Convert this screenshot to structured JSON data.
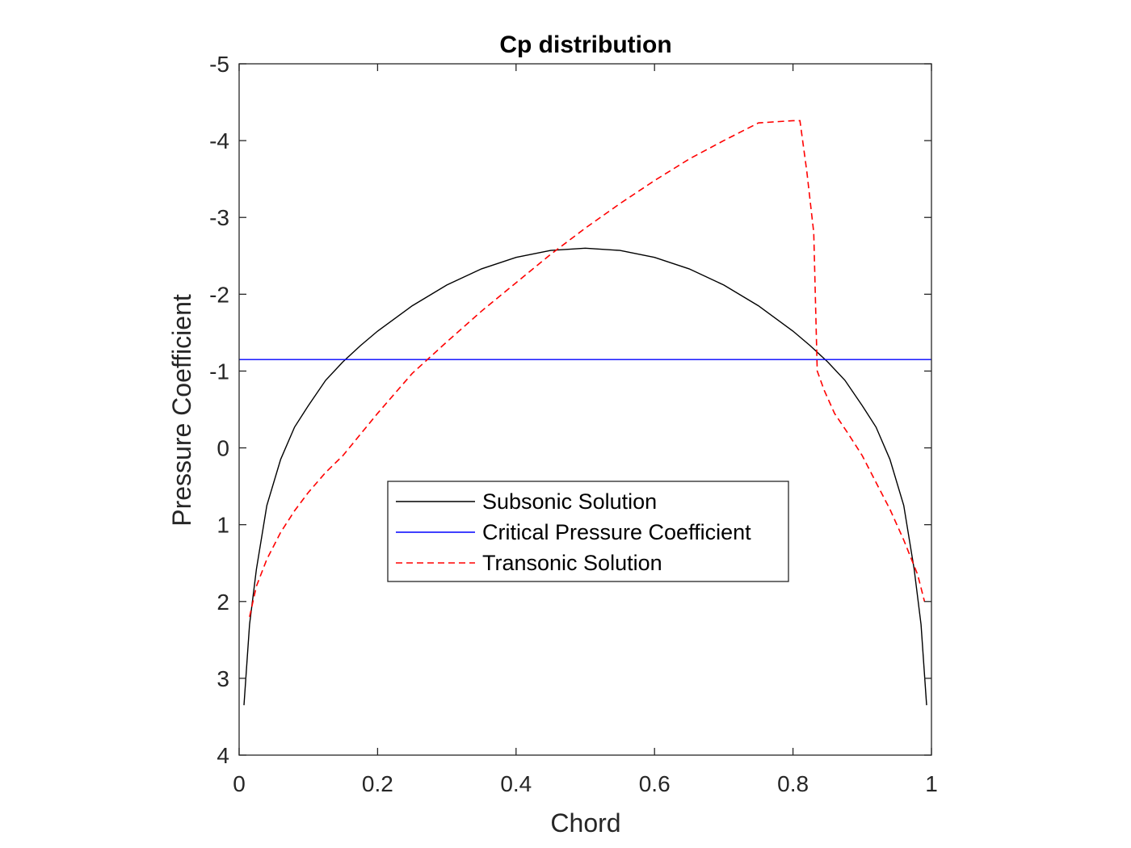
{
  "chart_data": {
    "type": "line",
    "title": "Cp distribution",
    "xlabel": "Chord",
    "ylabel": "Pressure Coefficient",
    "xlim": [
      0,
      1
    ],
    "ylim": [
      -5,
      4
    ],
    "y_reversed": true,
    "xticks": [
      0,
      0.2,
      0.4,
      0.6,
      0.8,
      1
    ],
    "xtick_labels": [
      "0",
      "0.2",
      "0.4",
      "0.6",
      "0.8",
      "1"
    ],
    "yticks": [
      -5,
      -4,
      -3,
      -2,
      -1,
      0,
      1,
      2,
      3,
      4
    ],
    "ytick_labels": [
      "-5",
      "-4",
      "-3",
      "-2",
      "-1",
      "0",
      "1",
      "2",
      "3",
      "4"
    ],
    "grid": false,
    "legend_position": "center",
    "series": [
      {
        "name": "Subsonic Solution",
        "color": "#000000",
        "dash": "solid",
        "x": [
          0.007,
          0.015,
          0.025,
          0.04,
          0.06,
          0.08,
          0.1,
          0.125,
          0.15,
          0.175,
          0.2,
          0.25,
          0.3,
          0.35,
          0.4,
          0.45,
          0.5,
          0.55,
          0.6,
          0.65,
          0.7,
          0.75,
          0.8,
          0.825,
          0.85,
          0.875,
          0.9,
          0.92,
          0.94,
          0.96,
          0.975,
          0.985,
          0.993
        ],
        "y": [
          3.35,
          2.3,
          1.58,
          0.75,
          0.15,
          -0.27,
          -0.55,
          -0.88,
          -1.12,
          -1.33,
          -1.52,
          -1.85,
          -2.12,
          -2.33,
          -2.48,
          -2.57,
          -2.6,
          -2.57,
          -2.48,
          -2.33,
          -2.12,
          -1.85,
          -1.52,
          -1.33,
          -1.12,
          -0.88,
          -0.55,
          -0.27,
          0.15,
          0.75,
          1.58,
          2.3,
          3.35
        ]
      },
      {
        "name": "Critical Pressure Coefficient",
        "color": "#0000ff",
        "dash": "solid",
        "x": [
          0,
          1
        ],
        "y": [
          -1.15,
          -1.15
        ]
      },
      {
        "name": "Transonic Solution",
        "color": "#ff0000",
        "dash": "dashed",
        "x": [
          0.015,
          0.025,
          0.04,
          0.06,
          0.08,
          0.1,
          0.125,
          0.15,
          0.2,
          0.25,
          0.3,
          0.35,
          0.4,
          0.45,
          0.5,
          0.55,
          0.6,
          0.65,
          0.7,
          0.75,
          0.8,
          0.81,
          0.82,
          0.83,
          0.835,
          0.845,
          0.86,
          0.88,
          0.9,
          0.92,
          0.94,
          0.96,
          0.98,
          0.99
        ],
        "y": [
          2.2,
          1.8,
          1.45,
          1.1,
          0.82,
          0.58,
          0.32,
          0.1,
          -0.45,
          -0.97,
          -1.38,
          -1.78,
          -2.15,
          -2.52,
          -2.86,
          -3.18,
          -3.48,
          -3.76,
          -4.0,
          -4.23,
          -4.26,
          -4.26,
          -3.6,
          -2.8,
          -1.0,
          -0.75,
          -0.45,
          -0.18,
          0.1,
          0.45,
          0.8,
          1.2,
          1.65,
          2.0
        ]
      }
    ]
  }
}
